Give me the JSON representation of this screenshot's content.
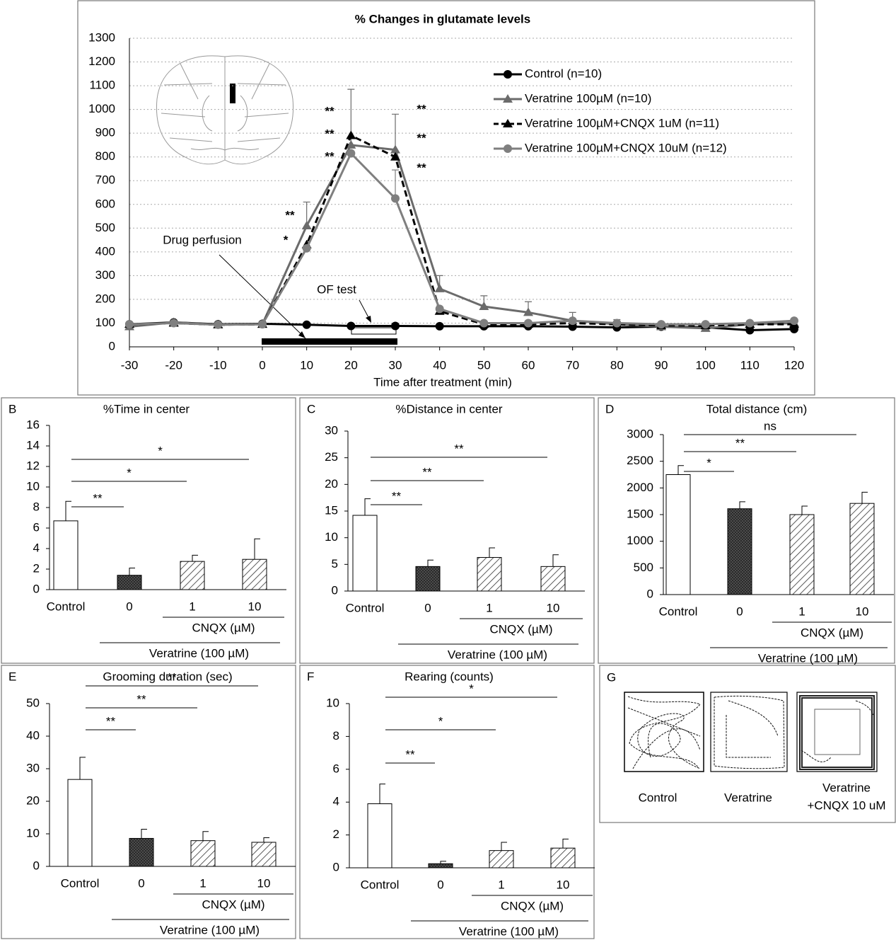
{
  "chart_data": [
    {
      "type": "line",
      "title": "% Changes in glutamate levels",
      "x_label": "Time after treatment (min)",
      "x": [
        -30,
        -20,
        -10,
        0,
        10,
        20,
        30,
        40,
        50,
        60,
        70,
        80,
        90,
        100,
        110,
        120
      ],
      "xlim": [
        -30,
        120
      ],
      "xticks": [
        -30,
        -20,
        -10,
        0,
        10,
        20,
        30,
        40,
        50,
        60,
        70,
        80,
        90,
        100,
        110,
        120
      ],
      "ylim": [
        0,
        1300
      ],
      "yticks": [
        0,
        100,
        200,
        300,
        400,
        500,
        600,
        700,
        800,
        900,
        1000,
        1100,
        1200,
        1300
      ],
      "grid": true,
      "series": [
        {
          "name": "Control (n=10)",
          "color": "#000000",
          "marker": "circle",
          "line_style": "solid",
          "values": [
            95,
            103,
            95,
            97,
            93,
            88,
            88,
            87,
            87,
            87,
            85,
            82,
            85,
            82,
            70,
            75
          ]
        },
        {
          "name": "Veratrine 100µM (n=10)",
          "color": "#6b6b6b",
          "marker": "triangle",
          "line_style": "solid",
          "values": [
            85,
            103,
            93,
            95,
            510,
            850,
            830,
            245,
            170,
            145,
            110,
            95,
            85,
            78,
            95,
            100
          ],
          "errors": [
            null,
            null,
            null,
            null,
            100,
            235,
            150,
            55,
            45,
            45,
            35,
            20,
            null,
            null,
            null,
            null
          ]
        },
        {
          "name": "Veratrine 100µM+CNQX 1uM (n=11)",
          "color": "#000000",
          "marker": "triangle",
          "line_style": "dashed",
          "values": [
            95,
            100,
            93,
            95,
            430,
            890,
            800,
            150,
            95,
            95,
            100,
            95,
            90,
            90,
            95,
            95
          ]
        },
        {
          "name": "Veratrine 100µM+CNQX 10uM (n=12)",
          "color": "#7f7f7f",
          "marker": "circle",
          "line_style": "solid",
          "values": [
            95,
            100,
            93,
            95,
            415,
            815,
            625,
            160,
            100,
            100,
            110,
            100,
            95,
            95,
            100,
            110
          ],
          "errors": [
            null,
            null,
            null,
            null,
            null,
            null,
            120,
            null,
            null,
            null,
            null,
            null,
            null,
            null,
            null,
            null
          ]
        }
      ],
      "annotations": [
        "**",
        "*",
        "**",
        "**",
        "**",
        "**",
        "**",
        "**",
        "Drug perfusion",
        "OF test"
      ]
    },
    {
      "type": "bar",
      "panel": "B",
      "title": "%Time in center",
      "categories": [
        "Control",
        "0",
        "1",
        "10"
      ],
      "values": [
        6.7,
        1.4,
        2.75,
        2.95
      ],
      "errors": [
        1.9,
        0.7,
        0.6,
        2.0
      ],
      "fills": [
        "#ffffff",
        "url(#cross)",
        "url(#diag)",
        "url(#diag)"
      ],
      "ylim": [
        0,
        16
      ],
      "yticks": [
        0,
        2,
        4,
        6,
        8,
        10,
        12,
        14,
        16
      ],
      "significance": [
        "**",
        "*",
        "*"
      ],
      "group_labels": [
        "CNQX (µM)",
        "Veratrine (100 µM)"
      ]
    },
    {
      "type": "bar",
      "panel": "C",
      "title": "%Distance in center",
      "categories": [
        "Control",
        "0",
        "1",
        "10"
      ],
      "values": [
        14.2,
        4.6,
        6.3,
        4.6
      ],
      "errors": [
        3.1,
        1.2,
        1.8,
        2.2
      ],
      "fills": [
        "#ffffff",
        "url(#cross)",
        "url(#diag)",
        "url(#diag)"
      ],
      "ylim": [
        0,
        30
      ],
      "yticks": [
        0,
        5,
        10,
        15,
        20,
        25,
        30
      ],
      "significance": [
        "**",
        "**",
        "**"
      ],
      "group_labels": [
        "CNQX (µM)",
        "Veratrine (100 µM)"
      ]
    },
    {
      "type": "bar",
      "panel": "D",
      "title": "Total distance (cm)",
      "categories": [
        "Control",
        "0",
        "1",
        "10"
      ],
      "values": [
        2250,
        1610,
        1500,
        1710
      ],
      "errors": [
        170,
        130,
        160,
        210
      ],
      "fills": [
        "#ffffff",
        "url(#cross)",
        "url(#diag)",
        "url(#diag)"
      ],
      "ylim": [
        0,
        3000
      ],
      "yticks": [
        0,
        500,
        1000,
        1500,
        2000,
        2500,
        3000
      ],
      "significance": [
        "*",
        "**",
        "ns"
      ],
      "group_labels": [
        "CNQX (µM)",
        "Veratrine (100 µM)"
      ]
    },
    {
      "type": "bar",
      "panel": "E",
      "title": "Grooming duration (sec)",
      "categories": [
        "Control",
        "0",
        "1",
        "10"
      ],
      "values": [
        26.7,
        8.6,
        7.9,
        7.4
      ],
      "errors": [
        6.8,
        2.8,
        2.8,
        1.4
      ],
      "fills": [
        "#ffffff",
        "url(#cross)",
        "url(#diag)",
        "url(#diag)"
      ],
      "ylim": [
        0,
        50
      ],
      "yticks": [
        0,
        10,
        20,
        30,
        40,
        50
      ],
      "significance": [
        "**",
        "**",
        "**"
      ],
      "group_labels": [
        "CNQX (µM)",
        "Veratrine (100 µM)"
      ]
    },
    {
      "type": "bar",
      "panel": "F",
      "title": "Rearing (counts)",
      "categories": [
        "Control",
        "0",
        "1",
        "10"
      ],
      "values": [
        3.9,
        0.25,
        1.05,
        1.2
      ],
      "errors": [
        1.2,
        0.15,
        0.5,
        0.55
      ],
      "fills": [
        "#ffffff",
        "url(#cross)",
        "url(#diag)",
        "url(#diag)"
      ],
      "ylim": [
        0,
        10
      ],
      "yticks": [
        0,
        2,
        4,
        6,
        8,
        10
      ],
      "significance": [
        "**",
        "*",
        "*"
      ],
      "group_labels": [
        "CNQX (µM)",
        "Veratrine (100 µM)"
      ]
    }
  ],
  "panel_g": {
    "letter": "G",
    "labels": [
      "Control",
      "Veratrine",
      [
        "Veratrine",
        "+CNQX 10 uM"
      ]
    ]
  }
}
